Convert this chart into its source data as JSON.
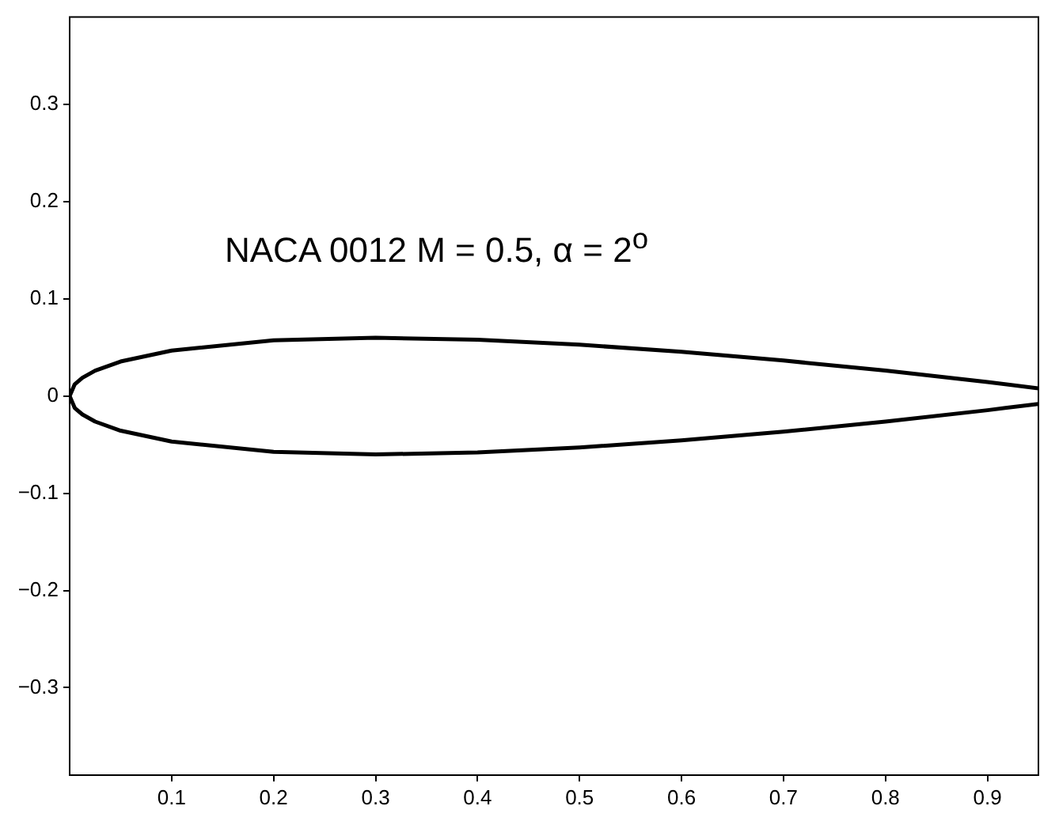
{
  "chart_data": {
    "type": "line",
    "xlim": [
      0,
      0.95
    ],
    "ylim": [
      -0.39,
      0.39
    ],
    "xticks": [
      0.1,
      0.2,
      0.3,
      0.4,
      0.5,
      0.6,
      0.7,
      0.8,
      0.9
    ],
    "yticks": [
      {
        "value": -0.3,
        "label": "−0.3"
      },
      {
        "value": -0.2,
        "label": "−0.2"
      },
      {
        "value": -0.1,
        "label": "−0.1"
      },
      0,
      0.1,
      0.2,
      0.3
    ],
    "grid": false,
    "legend": false,
    "marker": "none",
    "line_style": "solid",
    "annotations": [
      "NACA 0012 M = 0.5, α = 2$^{o}$"
    ],
    "series": [
      {
        "color": "#000000",
        "x": [
          0.95,
          0.9,
          0.8,
          0.7,
          0.6,
          0.5,
          0.4,
          0.3,
          0.2,
          0.1,
          0.05,
          0.025,
          0.0125,
          0.005,
          0,
          0.005,
          0.0125,
          0.025,
          0.05,
          0.1,
          0.2,
          0.3,
          0.4,
          0.5,
          0.6,
          0.7,
          0.8,
          0.9,
          0.95
        ],
        "values": [
          0.008,
          0.0145,
          0.0262,
          0.0366,
          0.0456,
          0.0529,
          0.058,
          0.06,
          0.0574,
          0.0468,
          0.0356,
          0.0262,
          0.0189,
          0.0122,
          0,
          -0.0122,
          -0.0189,
          -0.0262,
          -0.0356,
          -0.0468,
          -0.0574,
          -0.06,
          -0.058,
          -0.0529,
          -0.0456,
          -0.0366,
          -0.0262,
          -0.0145,
          -0.008
        ]
      }
    ]
  }
}
